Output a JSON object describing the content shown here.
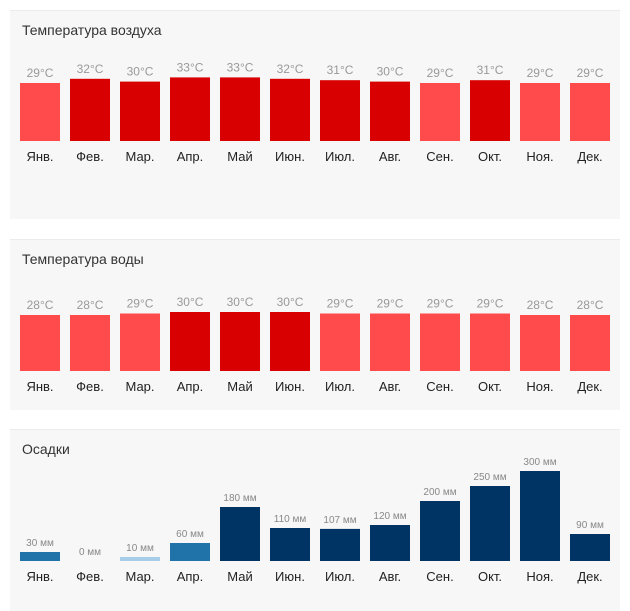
{
  "months": [
    "Янв.",
    "Фев.",
    "Мар.",
    "Апр.",
    "Май",
    "Июн.",
    "Июл.",
    "Авг.",
    "Сен.",
    "Окт.",
    "Ноя.",
    "Дек."
  ],
  "colors": {
    "hot": "#d80000",
    "warm": "#ff4b4b",
    "rain_light": "#a8cde8",
    "rain_mid": "#1f73a8",
    "rain_heavy": "#003465"
  },
  "chart_data": [
    {
      "id": "air",
      "type": "bar",
      "title": "Температура воздуха",
      "unit": "°C",
      "categories": [
        "Янв.",
        "Фев.",
        "Мар.",
        "Апр.",
        "Май",
        "Июн.",
        "Июл.",
        "Авг.",
        "Сен.",
        "Окт.",
        "Ноя.",
        "Дек."
      ],
      "values": [
        29,
        32,
        30,
        33,
        33,
        32,
        31,
        30,
        29,
        31,
        29,
        29
      ],
      "labels": [
        "29°C",
        "32°C",
        "30°C",
        "33°C",
        "33°C",
        "32°C",
        "31°C",
        "30°C",
        "29°C",
        "31°C",
        "29°C",
        "29°C"
      ]
    },
    {
      "id": "water",
      "type": "bar",
      "title": "Температура воды",
      "unit": "°C",
      "categories": [
        "Янв.",
        "Фев.",
        "Мар.",
        "Апр.",
        "Май",
        "Июн.",
        "Июл.",
        "Авг.",
        "Сен.",
        "Окт.",
        "Ноя.",
        "Дек."
      ],
      "values": [
        28,
        28,
        29,
        30,
        30,
        30,
        29,
        29,
        29,
        29,
        28,
        28
      ],
      "labels": [
        "28°C",
        "28°C",
        "29°C",
        "30°C",
        "30°C",
        "30°C",
        "29°C",
        "29°C",
        "29°C",
        "29°C",
        "28°C",
        "28°C"
      ]
    },
    {
      "id": "rain",
      "type": "bar",
      "title": "Осадки",
      "unit": "мм",
      "categories": [
        "Янв.",
        "Фев.",
        "Мар.",
        "Апр.",
        "Май",
        "Июн.",
        "Июл.",
        "Авг.",
        "Сен.",
        "Окт.",
        "Ноя.",
        "Дек."
      ],
      "values": [
        30,
        0,
        10,
        60,
        180,
        110,
        107,
        120,
        200,
        250,
        300,
        90
      ],
      "labels": [
        "30 мм",
        "0 мм",
        "10 мм",
        "60 мм",
        "180 мм",
        "110 мм",
        "107 мм",
        "120 мм",
        "200 мм",
        "250 мм",
        "300 мм",
        "90 мм"
      ]
    }
  ]
}
